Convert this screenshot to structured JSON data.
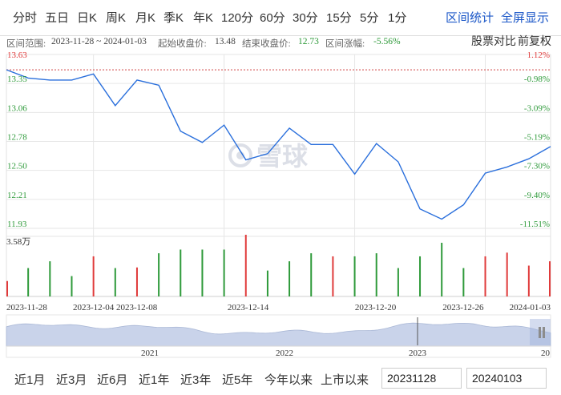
{
  "period_tabs": [
    "分时",
    "五日",
    "日K",
    "周K",
    "月K",
    "季K",
    "年K",
    "120分",
    "60分",
    "30分",
    "15分",
    "5分",
    "1分"
  ],
  "top_links": {
    "interval_stats": "区间统计",
    "fullscreen": "全屏显示"
  },
  "info": {
    "range_label": "区间范围:",
    "range_value": "2023-11-28 ~ 2024-01-03",
    "start_label": "起始收盘价:",
    "start_value": "13.48",
    "end_label": "结束收盘价:",
    "end_value": "12.73",
    "change_label": "区间涨幅:",
    "change_value": "-5.56%"
  },
  "tools": {
    "compare": "股票对比",
    "adjust": "前复权"
  },
  "watermark": "雪球",
  "colors": {
    "line": "#2a6fdc",
    "up": "#e03a3a",
    "down": "#2e9a3a",
    "grid": "#e6e6e6",
    "link": "#1a56c7"
  },
  "chart_data": {
    "type": "line",
    "y_ticks_left": [
      "13.63",
      "13.35",
      "13.06",
      "12.78",
      "12.50",
      "12.21",
      "11.93"
    ],
    "y_ticks_right": [
      "1.12%",
      "-0.98%",
      "-3.09%",
      "-5.19%",
      "-7.30%",
      "-9.40%",
      "-11.51%"
    ],
    "ylim": [
      11.93,
      13.63
    ],
    "reference_price": 13.48,
    "x_labels": [
      "2023-11-28",
      "2023-12-04",
      "2023-12-08",
      "2023-12-14",
      "2023-12-20",
      "2023-12-26",
      "2024-01-03"
    ],
    "close": [
      13.48,
      13.4,
      13.38,
      13.38,
      13.44,
      13.13,
      13.38,
      13.33,
      12.88,
      12.77,
      12.94,
      12.6,
      12.66,
      12.91,
      12.75,
      12.75,
      12.46,
      12.76,
      12.58,
      12.12,
      12.02,
      12.16,
      12.47,
      12.53,
      12.61,
      12.73
    ],
    "volume_max_label": "3.58万",
    "volume_ratio": [
      0.25,
      0.46,
      0.57,
      0.33,
      0.65,
      0.46,
      0.47,
      0.7,
      0.76,
      0.76,
      0.76,
      1.0,
      0.42,
      0.57,
      0.7,
      0.65,
      0.65,
      0.7,
      0.46,
      0.65,
      0.87,
      0.46,
      0.65,
      0.71,
      0.5,
      0.57
    ],
    "volume_up": [
      true,
      false,
      false,
      false,
      true,
      false,
      true,
      false,
      false,
      false,
      false,
      true,
      false,
      false,
      false,
      true,
      false,
      false,
      false,
      false,
      false,
      false,
      true,
      true,
      true,
      true
    ]
  },
  "overview": {
    "year_labels": [
      "2021",
      "2022",
      "2023",
      "20"
    ]
  },
  "range_buttons": [
    "近1月",
    "近3月",
    "近6月",
    "近1年",
    "近3年",
    "近5年",
    "今年以来",
    "上市以来"
  ],
  "date_inputs": {
    "start": "20231128",
    "end": "20240103"
  }
}
